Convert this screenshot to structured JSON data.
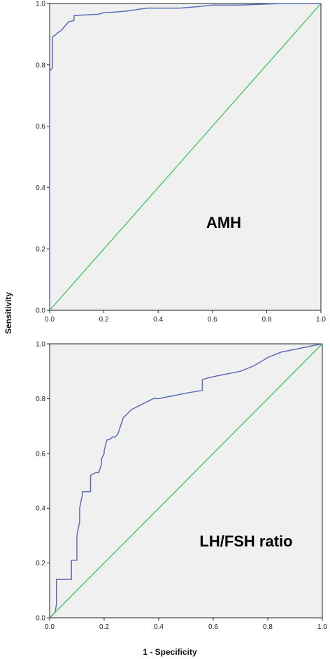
{
  "chart_data": [
    {
      "type": "line",
      "annotation": "AMH",
      "xlim": [
        0,
        1
      ],
      "ylim": [
        0,
        1
      ],
      "xticks": [
        "0.0",
        "0.2",
        "0.4",
        "0.6",
        "0.8",
        "1.0"
      ],
      "yticks": [
        "0.0",
        "0.2",
        "0.4",
        "0.6",
        "0.8",
        "1.0"
      ],
      "grid": false,
      "series": [
        {
          "role": "roc",
          "color": "#5b6fb5",
          "x": [
            0,
            0,
            0.01,
            0.01,
            0.025,
            0.03,
            0.04,
            0.05,
            0.07,
            0.09,
            0.09,
            0.12,
            0.18,
            0.2,
            0.24,
            0.28,
            0.32,
            0.36,
            0.48,
            0.55,
            0.6,
            0.7,
            0.8,
            0.86,
            1.0
          ],
          "y": [
            0,
            0.78,
            0.79,
            0.89,
            0.9,
            0.905,
            0.91,
            0.92,
            0.94,
            0.945,
            0.96,
            0.962,
            0.965,
            0.97,
            0.972,
            0.975,
            0.98,
            0.985,
            0.985,
            0.99,
            0.995,
            0.995,
            0.998,
            1.0,
            1.0
          ]
        },
        {
          "role": "reference",
          "color": "#3ec35a",
          "x": [
            0,
            1
          ],
          "y": [
            0,
            1
          ]
        }
      ]
    },
    {
      "type": "line",
      "annotation": "LH/FSH ratio",
      "xlim": [
        0,
        1
      ],
      "ylim": [
        0,
        1
      ],
      "xticks": [
        "0.0",
        "0.2",
        "0.4",
        "0.6",
        "0.8",
        "1.0"
      ],
      "yticks": [
        "0.0",
        "0.2",
        "0.4",
        "0.6",
        "0.8",
        "1.0"
      ],
      "grid": false,
      "series": [
        {
          "role": "roc",
          "color": "#5b6fb5",
          "x": [
            0,
            0.02,
            0.025,
            0.025,
            0.08,
            0.08,
            0.1,
            0.1,
            0.11,
            0.11,
            0.12,
            0.12,
            0.15,
            0.15,
            0.17,
            0.18,
            0.19,
            0.19,
            0.2,
            0.2,
            0.21,
            0.22,
            0.23,
            0.24,
            0.25,
            0.26,
            0.27,
            0.28,
            0.29,
            0.3,
            0.32,
            0.34,
            0.36,
            0.38,
            0.4,
            0.45,
            0.5,
            0.56,
            0.56,
            0.6,
            0.65,
            0.7,
            0.75,
            0.8,
            0.85,
            0.9,
            0.95,
            1.0
          ],
          "y": [
            0,
            0.02,
            0.05,
            0.14,
            0.14,
            0.21,
            0.21,
            0.3,
            0.35,
            0.4,
            0.45,
            0.46,
            0.46,
            0.52,
            0.53,
            0.53,
            0.56,
            0.58,
            0.6,
            0.61,
            0.65,
            0.65,
            0.66,
            0.66,
            0.67,
            0.7,
            0.73,
            0.74,
            0.75,
            0.76,
            0.77,
            0.78,
            0.79,
            0.8,
            0.8,
            0.81,
            0.82,
            0.83,
            0.87,
            0.88,
            0.89,
            0.9,
            0.92,
            0.95,
            0.97,
            0.98,
            0.99,
            1.0
          ]
        },
        {
          "role": "reference",
          "color": "#3ec35a",
          "x": [
            0,
            1
          ],
          "y": [
            0,
            1
          ]
        }
      ]
    }
  ],
  "ylabel": "Sensitivity",
  "xlabel": "1 - Specificity"
}
